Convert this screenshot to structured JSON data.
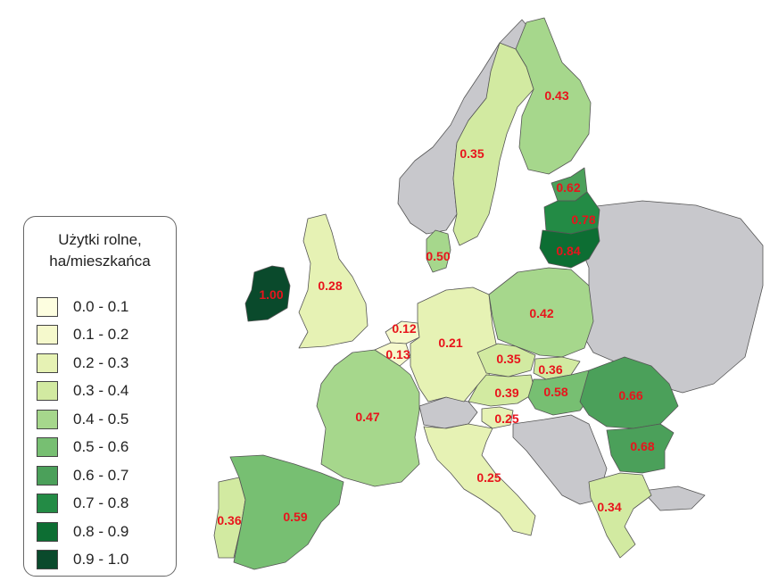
{
  "legend": {
    "title_line1": "Użytki rolne,",
    "title_line2": "ha/mieszkańca",
    "classes": [
      {
        "label": "0.0 - 0.1",
        "color": "#fdfee0"
      },
      {
        "label": "0.1 - 0.2",
        "color": "#f5f9cc"
      },
      {
        "label": "0.2 - 0.3",
        "color": "#e6f2b4"
      },
      {
        "label": "0.3 - 0.4",
        "color": "#d2eaa1"
      },
      {
        "label": "0.4 - 0.5",
        "color": "#a6d78c"
      },
      {
        "label": "0.5 - 0.6",
        "color": "#77bf72"
      },
      {
        "label": "0.6 - 0.7",
        "color": "#4ba05a"
      },
      {
        "label": "0.7 - 0.8",
        "color": "#238b45"
      },
      {
        "label": "0.8 - 0.9",
        "color": "#0d6e33"
      },
      {
        "label": "0.9 - 1.0",
        "color": "#0a4a2c"
      }
    ]
  },
  "no_data_color": "#c8c8cc",
  "countries": [
    {
      "id": "finland",
      "value": "0.43",
      "class": 4
    },
    {
      "id": "sweden",
      "value": "0.35",
      "class": 3
    },
    {
      "id": "estonia",
      "value": "0.62",
      "class": 6
    },
    {
      "id": "latvia",
      "value": "0.78",
      "class": 7
    },
    {
      "id": "lithuania",
      "value": "0.84",
      "class": 8
    },
    {
      "id": "denmark",
      "value": "0.50",
      "class": 4
    },
    {
      "id": "ireland",
      "value": "1.00",
      "class": 9
    },
    {
      "id": "united-kingdom",
      "value": "0.28",
      "class": 2
    },
    {
      "id": "netherlands",
      "value": "0.12",
      "class": 1
    },
    {
      "id": "belgium",
      "value": "0.13",
      "class": 1
    },
    {
      "id": "germany",
      "value": "0.21",
      "class": 2
    },
    {
      "id": "poland",
      "value": "0.42",
      "class": 4
    },
    {
      "id": "czechia",
      "value": "0.35",
      "class": 3
    },
    {
      "id": "slovakia",
      "value": "0.36",
      "class": 3
    },
    {
      "id": "austria",
      "value": "0.39",
      "class": 3
    },
    {
      "id": "hungary",
      "value": "0.58",
      "class": 5
    },
    {
      "id": "romania",
      "value": "0.66",
      "class": 6
    },
    {
      "id": "bulgaria",
      "value": "0.68",
      "class": 6
    },
    {
      "id": "slovenia",
      "value": "0.25",
      "class": 2
    },
    {
      "id": "france",
      "value": "0.47",
      "class": 4
    },
    {
      "id": "italy",
      "value": "0.25",
      "class": 2
    },
    {
      "id": "portugal",
      "value": "0.36",
      "class": 3
    },
    {
      "id": "spain",
      "value": "0.59",
      "class": 5
    },
    {
      "id": "greece",
      "value": "0.34",
      "class": 3
    }
  ]
}
